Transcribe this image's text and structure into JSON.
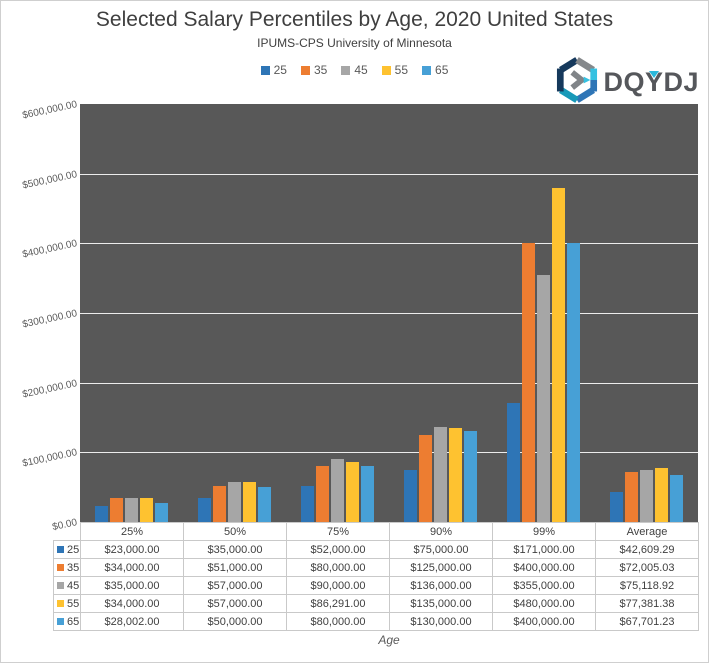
{
  "header": {
    "title": "Selected Salary Percentiles by Age, 2020 United States",
    "subtitle": "IPUMS-CPS University of Minnesota"
  },
  "logo": {
    "part1": "DQ",
    "part2": "Y",
    "part3": "DJ",
    "accent_color": "#2bb9db"
  },
  "axis": {
    "x_title": "Age",
    "ytick_labels": [
      "$600,000.00",
      "$500,000.00",
      "$400,000.00",
      "$300,000.00",
      "$200,000.00",
      "$100,000.00",
      "$0.00"
    ],
    "ytick_values": [
      600000,
      500000,
      400000,
      300000,
      200000,
      100000,
      0
    ]
  },
  "colors": {
    "plot_background": "#585858",
    "gridline": "#ececec",
    "table_border": "#c9c9c9"
  },
  "chart_data": {
    "type": "bar",
    "title": "Selected Salary Percentiles by Age, 2020 United States",
    "subtitle": "IPUMS-CPS University of Minnesota",
    "xlabel": "Age",
    "ylabel": "",
    "ylim": [
      0,
      600000
    ],
    "grid": true,
    "legend_position": "top",
    "plot_background": "#585858",
    "categories": [
      "25%",
      "50%",
      "75%",
      "90%",
      "99%",
      "Average"
    ],
    "series": [
      {
        "name": "25",
        "color": "#2e75b6",
        "values": [
          23000,
          35000,
          52000,
          75000,
          171000,
          42609.29
        ],
        "cells": [
          "$23,000.00",
          "$35,000.00",
          "$52,000.00",
          "$75,000.00",
          "$171,000.00",
          "$42,609.29"
        ]
      },
      {
        "name": "35",
        "color": "#ed7d31",
        "values": [
          34000,
          51000,
          80000,
          125000,
          400000,
          72005.03
        ],
        "cells": [
          "$34,000.00",
          "$51,000.00",
          "$80,000.00",
          "$125,000.00",
          "$400,000.00",
          "$72,005.03"
        ]
      },
      {
        "name": "45",
        "color": "#a6a6a6",
        "values": [
          35000,
          57000,
          90000,
          136000,
          355000,
          75118.92
        ],
        "cells": [
          "$35,000.00",
          "$57,000.00",
          "$90,000.00",
          "$136,000.00",
          "$355,000.00",
          "$75,118.92"
        ]
      },
      {
        "name": "55",
        "color": "#fec230",
        "values": [
          34000,
          57000,
          86291,
          135000,
          480000,
          77381.38
        ],
        "cells": [
          "$34,000.00",
          "$57,000.00",
          "$86,291.00",
          "$135,000.00",
          "$480,000.00",
          "$77,381.38"
        ]
      },
      {
        "name": "65",
        "color": "#47a0d6",
        "values": [
          28002,
          50000,
          80000,
          130000,
          400000,
          67701.23
        ],
        "cells": [
          "$28,002.00",
          "$50,000.00",
          "$80,000.00",
          "$130,000.00",
          "$400,000.00",
          "$67,701.23"
        ]
      }
    ]
  }
}
